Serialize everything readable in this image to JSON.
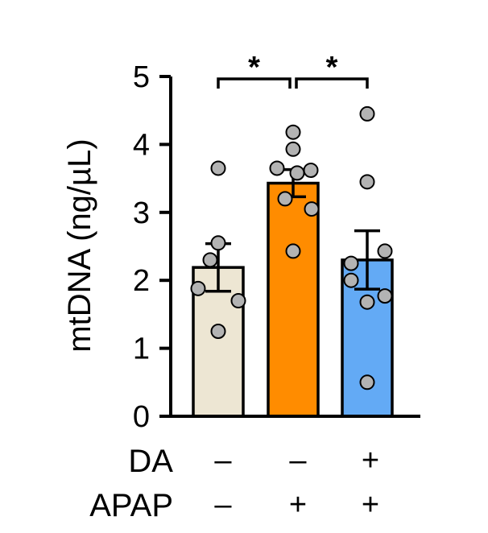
{
  "chart_data": {
    "type": "bar",
    "title": "",
    "xlabel": "",
    "ylabel": "mtDNA (ng/µL)",
    "ylim": [
      0,
      5
    ],
    "yticks": [
      0,
      1,
      2,
      3,
      4,
      5
    ],
    "grid": false,
    "legend": "none",
    "categories": [
      "DA− APAP−",
      "DA− APAP+",
      "DA+ APAP+"
    ],
    "values": [
      2.19,
      3.43,
      2.3
    ],
    "sem": [
      0.35,
      0.2,
      0.43
    ],
    "colors": [
      "#ede6d3",
      "#ff8c00",
      "#63aaf5"
    ],
    "point_color": "#b3b3b3",
    "points": [
      [
        3.65,
        2.55,
        2.3,
        1.88,
        1.7,
        1.25
      ],
      [
        4.18,
        3.93,
        3.65,
        3.62,
        3.58,
        3.2,
        3.05,
        2.43
      ],
      [
        4.45,
        3.45,
        2.43,
        2.25,
        2.0,
        1.77,
        1.68,
        0.5
      ]
    ],
    "significance": [
      {
        "from": 0,
        "to": 1,
        "label": "*"
      },
      {
        "from": 1,
        "to": 2,
        "label": "*"
      }
    ],
    "conditions": [
      {
        "label": "DA",
        "values": [
          "–",
          "–",
          "+"
        ]
      },
      {
        "label": "APAP",
        "values": [
          "–",
          "+",
          "+"
        ]
      }
    ]
  }
}
